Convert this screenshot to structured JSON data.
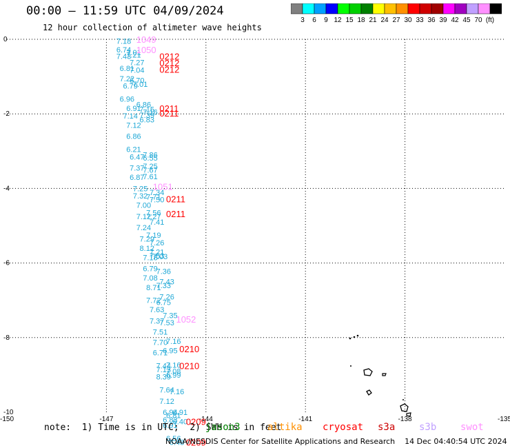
{
  "header": {
    "title": "00:00 – 11:59 UTC 04/09/2024",
    "subtitle": "12 hour collection of altimeter wave heights"
  },
  "colorbar": {
    "colors": [
      "#808080",
      "#00ffff",
      "#00a0ff",
      "#0000ff",
      "#00ff00",
      "#00d000",
      "#008000",
      "#ffff00",
      "#ffc000",
      "#ff9000",
      "#ff0000",
      "#d00000",
      "#a00000",
      "#ff00ff",
      "#a000c0",
      "#c0a0ff",
      "#ff90ff",
      "#000000"
    ],
    "labels": [
      "3",
      "6",
      "9",
      "12",
      "15",
      "18",
      "21",
      "24",
      "27",
      "30",
      "33",
      "36",
      "39",
      "42",
      "45",
      "70",
      "(ft)"
    ]
  },
  "note": "note:  1) Time is in UTC;  2) SWH is in feet",
  "satellites": [
    {
      "name": "jason3",
      "color": "#008000"
    },
    {
      "name": "altika",
      "color": "#ff9000"
    },
    {
      "name": "cryosat",
      "color": "#ff0000"
    },
    {
      "name": "s3a",
      "color": "#cc0000"
    },
    {
      "name": "s3b",
      "color": "#c0a0ff"
    },
    {
      "name": "swot",
      "color": "#ff90ff"
    }
  ],
  "footer": "NOAA/NESDIS Center for Satellite Applications and Research    14 Dec 04:40:54 UTC 2024",
  "chart_data": {
    "type": "scatter",
    "title": "00:00 – 11:59 UTC 04/09/2024",
    "subtitle": "12 hour collection of altimeter wave heights",
    "xlabel": "",
    "ylabel": "",
    "xlim": [
      -150,
      -135
    ],
    "ylim": [
      -10,
      0
    ],
    "x_ticks": [
      "-150",
      "-147",
      "-144",
      "-141",
      "-138",
      "-135"
    ],
    "y_ticks": [
      "0",
      "-2",
      "-4",
      "-6",
      "-8",
      "-10"
    ],
    "x_tick_values": [
      -150,
      -147,
      -144,
      -141,
      -138,
      -135
    ],
    "y_tick_values": [
      0,
      -2,
      -4,
      -6,
      -8,
      -10
    ],
    "grid": true,
    "wave_labels": [
      {
        "x": -146.7,
        "y": -0.05,
        "label": "7.18"
      },
      {
        "x": -146.7,
        "y": -0.28,
        "label": "6.74"
      },
      {
        "x": -146.4,
        "y": -0.35,
        "label": "7.01"
      },
      {
        "x": -146.7,
        "y": -0.45,
        "label": "7.43"
      },
      {
        "x": -146.4,
        "y": -0.42,
        "label": "7.21"
      },
      {
        "x": -146.3,
        "y": -0.62,
        "label": "7.27"
      },
      {
        "x": -146.6,
        "y": -0.78,
        "label": "6.81"
      },
      {
        "x": -146.3,
        "y": -0.82,
        "label": "7.04"
      },
      {
        "x": -146.6,
        "y": -1.05,
        "label": "7.22"
      },
      {
        "x": -146.3,
        "y": -1.1,
        "label": "6.70"
      },
      {
        "x": -146.5,
        "y": -1.25,
        "label": "6.79"
      },
      {
        "x": -146.2,
        "y": -1.2,
        "label": "7.01"
      },
      {
        "x": -146.6,
        "y": -1.6,
        "label": "6.96"
      },
      {
        "x": -146.1,
        "y": -1.75,
        "label": "6.86"
      },
      {
        "x": -146.4,
        "y": -1.85,
        "label": "6.91"
      },
      {
        "x": -146.0,
        "y": -1.88,
        "label": "7.15"
      },
      {
        "x": -145.9,
        "y": -1.95,
        "label": "7.16"
      },
      {
        "x": -146.5,
        "y": -2.05,
        "label": "7.14"
      },
      {
        "x": -146.0,
        "y": -2.03,
        "label": "7.39"
      },
      {
        "x": -146.0,
        "y": -2.15,
        "label": "6.83"
      },
      {
        "x": -146.4,
        "y": -2.3,
        "label": "7.12"
      },
      {
        "x": -146.4,
        "y": -2.6,
        "label": "6.86"
      },
      {
        "x": -146.4,
        "y": -2.95,
        "label": "6.21"
      },
      {
        "x": -146.3,
        "y": -3.15,
        "label": "6.47"
      },
      {
        "x": -145.9,
        "y": -3.1,
        "label": "7.86"
      },
      {
        "x": -145.9,
        "y": -3.18,
        "label": "6.55"
      },
      {
        "x": -146.3,
        "y": -3.45,
        "label": "7.37"
      },
      {
        "x": -145.9,
        "y": -3.4,
        "label": "7.25"
      },
      {
        "x": -145.9,
        "y": -3.5,
        "label": "7.67"
      },
      {
        "x": -146.3,
        "y": -3.7,
        "label": "6.87"
      },
      {
        "x": -145.9,
        "y": -3.68,
        "label": "7.61"
      },
      {
        "x": -146.2,
        "y": -4.0,
        "label": "7.25"
      },
      {
        "x": -145.7,
        "y": -4.1,
        "label": "7.34"
      },
      {
        "x": -146.2,
        "y": -4.2,
        "label": "7.32"
      },
      {
        "x": -145.8,
        "y": -4.22,
        "label": "7.71"
      },
      {
        "x": -145.7,
        "y": -4.3,
        "label": "7.50"
      },
      {
        "x": -146.1,
        "y": -4.45,
        "label": "7.00"
      },
      {
        "x": -145.8,
        "y": -4.65,
        "label": "7.56"
      },
      {
        "x": -146.1,
        "y": -4.75,
        "label": "7.12"
      },
      {
        "x": -145.8,
        "y": -4.75,
        "label": "7.27"
      },
      {
        "x": -145.7,
        "y": -4.9,
        "label": "7.41"
      },
      {
        "x": -146.1,
        "y": -5.05,
        "label": "7.24"
      },
      {
        "x": -145.8,
        "y": -5.25,
        "label": "7.19"
      },
      {
        "x": -146.0,
        "y": -5.35,
        "label": "7.29"
      },
      {
        "x": -145.7,
        "y": -5.45,
        "label": "7.26"
      },
      {
        "x": -146.0,
        "y": -5.6,
        "label": "8.12"
      },
      {
        "x": -145.7,
        "y": -5.7,
        "label": "7.21"
      },
      {
        "x": -145.7,
        "y": -5.8,
        "label": "7.53"
      },
      {
        "x": -145.6,
        "y": -5.82,
        "label": "7.03"
      },
      {
        "x": -145.9,
        "y": -5.85,
        "label": "7.18"
      },
      {
        "x": -145.9,
        "y": -6.15,
        "label": "6.79"
      },
      {
        "x": -145.5,
        "y": -6.22,
        "label": "7.36"
      },
      {
        "x": -145.9,
        "y": -6.4,
        "label": "7.08"
      },
      {
        "x": -145.4,
        "y": -6.5,
        "label": "7.43"
      },
      {
        "x": -145.5,
        "y": -6.6,
        "label": "7.33"
      },
      {
        "x": -145.8,
        "y": -6.65,
        "label": "8.71"
      },
      {
        "x": -145.4,
        "y": -6.9,
        "label": "7.26"
      },
      {
        "x": -145.8,
        "y": -7.0,
        "label": "7.72"
      },
      {
        "x": -145.5,
        "y": -7.05,
        "label": "6.75"
      },
      {
        "x": -145.7,
        "y": -7.25,
        "label": "7.63"
      },
      {
        "x": -145.3,
        "y": -7.4,
        "label": "7.35"
      },
      {
        "x": -145.7,
        "y": -7.55,
        "label": "7.37"
      },
      {
        "x": -145.4,
        "y": -7.6,
        "label": "7.53"
      },
      {
        "x": -145.6,
        "y": -7.85,
        "label": "7.51"
      },
      {
        "x": -145.2,
        "y": -8.1,
        "label": "7.16"
      },
      {
        "x": -145.6,
        "y": -8.12,
        "label": "7.70"
      },
      {
        "x": -145.3,
        "y": -8.35,
        "label": "6.95"
      },
      {
        "x": -145.6,
        "y": -8.4,
        "label": "6.71"
      },
      {
        "x": -145.5,
        "y": -8.75,
        "label": "7.44"
      },
      {
        "x": -145.2,
        "y": -8.73,
        "label": "7.16"
      },
      {
        "x": -145.5,
        "y": -8.85,
        "label": "7.13"
      },
      {
        "x": -145.2,
        "y": -8.9,
        "label": "7.08"
      },
      {
        "x": -145.5,
        "y": -9.05,
        "label": "8.39"
      },
      {
        "x": -145.2,
        "y": -9.0,
        "label": "6.99"
      },
      {
        "x": -145.4,
        "y": -9.4,
        "label": "7.64"
      },
      {
        "x": -145.1,
        "y": -9.45,
        "label": "7.16"
      },
      {
        "x": -145.4,
        "y": -9.7,
        "label": "7.12"
      },
      {
        "x": -145.3,
        "y": -10.0,
        "label": "6.94"
      },
      {
        "x": -145.0,
        "y": -10.0,
        "label": "6.91"
      },
      {
        "x": -145.2,
        "y": -10.08,
        "label": "6.81"
      },
      {
        "x": -145.3,
        "y": -10.2,
        "label": "6.83"
      },
      {
        "x": -145.0,
        "y": -10.25,
        "label": "6.40"
      },
      {
        "x": -145.3,
        "y": -10.35,
        "label": "6.91"
      },
      {
        "x": -145.2,
        "y": -10.7,
        "label": "6.56"
      },
      {
        "x": -145.1,
        "y": -10.8,
        "label": "6.48"
      }
    ],
    "pass_labels": [
      {
        "x": -146.1,
        "y": 0.0,
        "label": "1049",
        "satellite": "swot"
      },
      {
        "x": -146.1,
        "y": -0.28,
        "label": "1050",
        "satellite": "swot"
      },
      {
        "x": -145.4,
        "y": -0.45,
        "label": "0212",
        "satellite": "cryosat"
      },
      {
        "x": -145.4,
        "y": -0.63,
        "label": "0212",
        "satellite": "cryosat"
      },
      {
        "x": -145.4,
        "y": -0.8,
        "label": "0212",
        "satellite": "cryosat"
      },
      {
        "x": -145.4,
        "y": -1.85,
        "label": "0211",
        "satellite": "cryosat"
      },
      {
        "x": -145.4,
        "y": -1.98,
        "label": "0211",
        "satellite": "cryosat"
      },
      {
        "x": -145.6,
        "y": -3.95,
        "label": "1051",
        "satellite": "swot"
      },
      {
        "x": -145.2,
        "y": -4.28,
        "label": "0211",
        "satellite": "cryosat"
      },
      {
        "x": -145.2,
        "y": -4.68,
        "label": "0211",
        "satellite": "cryosat"
      },
      {
        "x": -144.9,
        "y": -7.5,
        "label": "1052",
        "satellite": "swot"
      },
      {
        "x": -144.8,
        "y": -8.3,
        "label": "0210",
        "satellite": "cryosat"
      },
      {
        "x": -144.8,
        "y": -8.75,
        "label": "0210",
        "satellite": "cryosat"
      },
      {
        "x": -144.6,
        "y": -10.25,
        "label": "0209",
        "satellite": "cryosat"
      },
      {
        "x": -144.6,
        "y": -10.8,
        "label": "0209",
        "satellite": "cryosat"
      }
    ]
  }
}
